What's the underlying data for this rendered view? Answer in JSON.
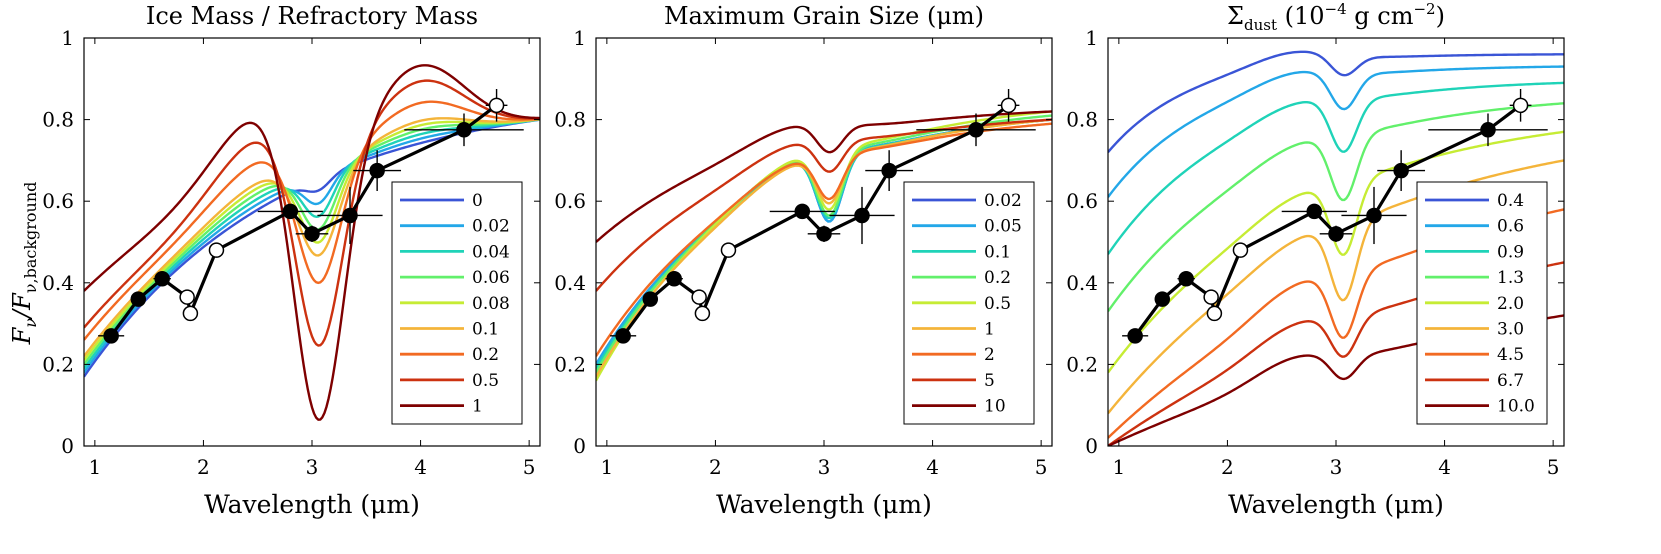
{
  "figure": {
    "ylabel": "F_ν / F_ν,background",
    "ylabel_main": "F",
    "ylabel_sub": "ν",
    "ylabel_den": "/F",
    "ylabel_den_sub": "ν,background"
  },
  "observations": {
    "x": [
      1.15,
      1.4,
      1.62,
      1.85,
      1.88,
      2.12,
      2.8,
      3.0,
      3.35,
      3.6,
      4.4,
      4.7
    ],
    "y": [
      0.27,
      0.36,
      0.41,
      0.365,
      0.325,
      0.48,
      0.575,
      0.52,
      0.565,
      0.675,
      0.775,
      0.835
    ],
    "filled": [
      true,
      true,
      true,
      false,
      false,
      false,
      true,
      true,
      true,
      true,
      true,
      false
    ],
    "xerr": [
      0.12,
      0.06,
      0.08,
      0.06,
      0.02,
      0.04,
      0.3,
      0.15,
      0.3,
      0.22,
      0.55,
      0.1
    ],
    "yerr": [
      0.0,
      0.0,
      0.0,
      0.0,
      0.0,
      0.0,
      0.0,
      0.02,
      0.07,
      0.05,
      0.04,
      0.04
    ]
  },
  "chart_data": [
    {
      "type": "line",
      "title": "Ice Mass / Refractory Mass",
      "xlabel": "Wavelength (μm)",
      "ylabel": "F_ν / F_ν,background",
      "xlim": [
        0.9,
        5.1
      ],
      "ylim": [
        0,
        1
      ],
      "xticks": [
        "1",
        "2",
        "3",
        "4",
        "5"
      ],
      "yticks": [
        "0",
        "0.2",
        "0.4",
        "0.6",
        "0.8",
        "1"
      ],
      "legend_position": "lower-right",
      "legend": [
        "0",
        "0.02",
        "0.04",
        "0.06",
        "0.08",
        "0.1",
        "0.2",
        "0.5",
        "1"
      ],
      "colors": [
        "#3a55d6",
        "#23a7e8",
        "#1fd3b8",
        "#62f06b",
        "#c6ec34",
        "#f4b43a",
        "#f26a22",
        "#cc3210",
        "#7e0000"
      ],
      "model": "ice",
      "params": [
        0,
        0.02,
        0.04,
        0.06,
        0.08,
        0.1,
        0.2,
        0.5,
        1
      ]
    },
    {
      "type": "line",
      "title": "Maximum Grain Size (μm)",
      "xlabel": "Wavelength (μm)",
      "ylabel": "",
      "xlim": [
        0.9,
        5.1
      ],
      "ylim": [
        0,
        1
      ],
      "xticks": [
        "1",
        "2",
        "3",
        "4",
        "5"
      ],
      "yticks": [
        "0",
        "0.2",
        "0.4",
        "0.6",
        "0.8",
        "1"
      ],
      "legend_position": "lower-right",
      "legend": [
        "0.02",
        "0.05",
        "0.1",
        "0.2",
        "0.5",
        "1",
        "2",
        "5",
        "10"
      ],
      "colors": [
        "#3a55d6",
        "#23a7e8",
        "#1fd3b8",
        "#62f06b",
        "#c6ec34",
        "#f4b43a",
        "#f26a22",
        "#cc3210",
        "#7e0000"
      ],
      "model": "grain",
      "params": [
        0.02,
        0.05,
        0.1,
        0.2,
        0.5,
        1,
        2,
        5,
        10
      ]
    },
    {
      "type": "line",
      "title": "Σdust (10⁻⁴ g cm⁻²)",
      "title_main": "Σ",
      "title_sub": "dust",
      "title_rest": " (10",
      "title_exp": "−4",
      "title_unit": " g cm",
      "title_unit_exp": "−2",
      "title_close": ")",
      "xlabel": "Wavelength (μm)",
      "ylabel": "",
      "xlim": [
        0.9,
        5.1
      ],
      "ylim": [
        0,
        1
      ],
      "xticks": [
        "1",
        "2",
        "3",
        "4",
        "5"
      ],
      "yticks": [
        "0",
        "0.2",
        "0.4",
        "0.6",
        "0.8",
        "1"
      ],
      "legend_position": "lower-right",
      "legend": [
        "0.4",
        "0.6",
        "0.9",
        "1.3",
        "2.0",
        "3.0",
        "4.5",
        "6.7",
        "10.0"
      ],
      "colors": [
        "#3a55d6",
        "#23a7e8",
        "#1fd3b8",
        "#62f06b",
        "#c6ec34",
        "#f4b43a",
        "#f26a22",
        "#cc3210",
        "#7e0000"
      ],
      "model": "sigma",
      "params": [
        0.4,
        0.6,
        0.9,
        1.3,
        2.0,
        3.0,
        4.5,
        6.7,
        10.0
      ]
    }
  ]
}
